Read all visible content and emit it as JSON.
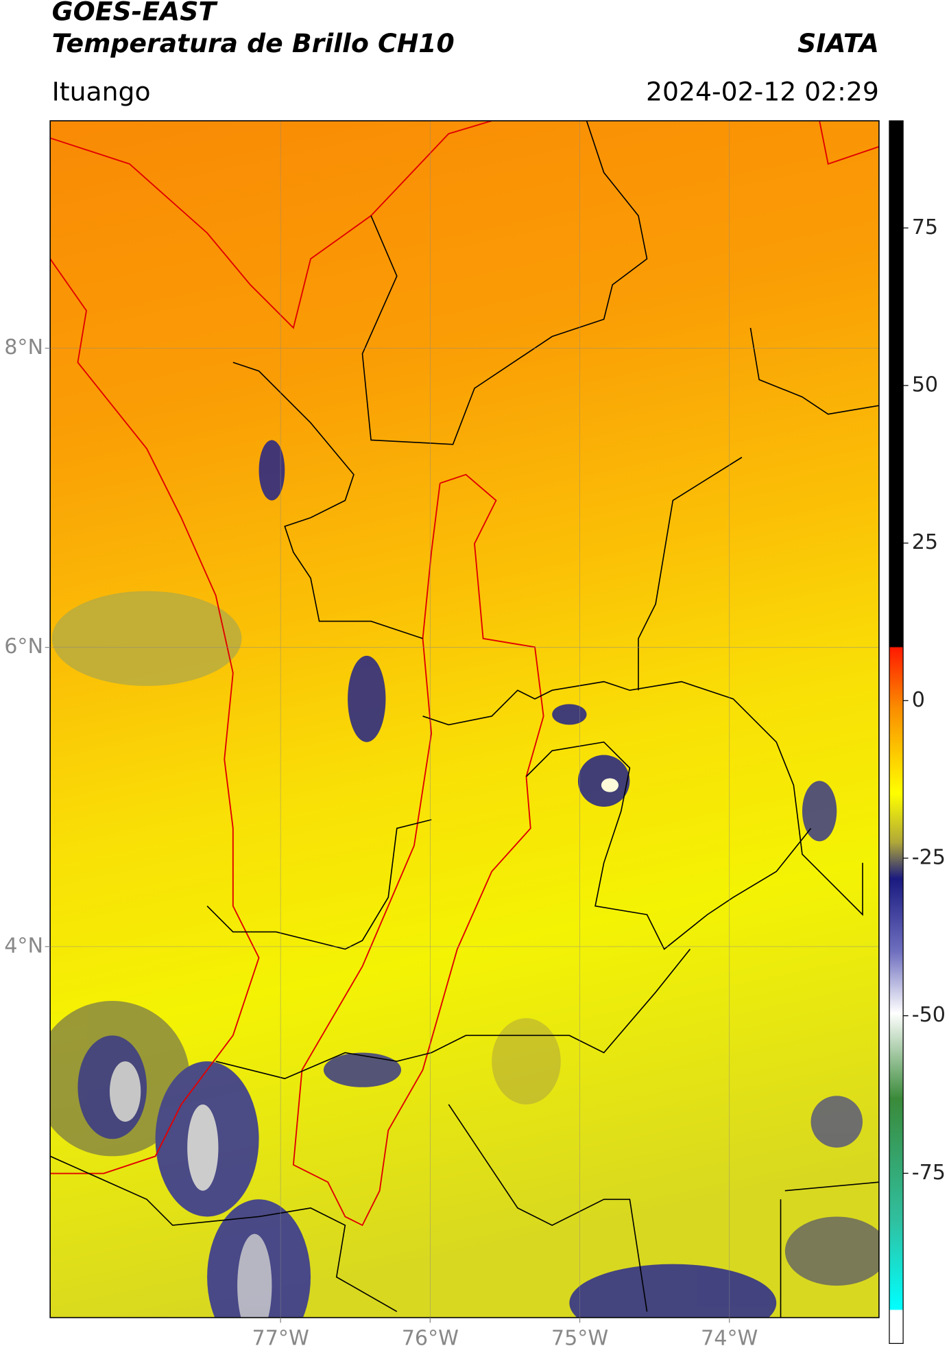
{
  "chart_data": {
    "type": "map",
    "title": "GOES-EAST",
    "subtitle": "Temperatura de Brillo CH10",
    "source": "SIATA",
    "location": "Ituango",
    "datetime": "2024-02-12 02:29",
    "xlim": [
      -78.54,
      -73.0
    ],
    "ylim": [
      1.52,
      9.52
    ],
    "xticks": [
      {
        "value": -77,
        "label": "77°W"
      },
      {
        "value": -76,
        "label": "76°W"
      },
      {
        "value": -75,
        "label": "75°W"
      },
      {
        "value": -74,
        "label": "74°W"
      }
    ],
    "yticks": [
      {
        "value": 8,
        "label": "8°N"
      },
      {
        "value": 6,
        "label": "6°N"
      },
      {
        "value": 4,
        "label": "4°N"
      }
    ],
    "grid": true,
    "colorbar": {
      "lim": [
        -102,
        92
      ],
      "ticks": [
        75,
        50,
        25,
        0,
        -25,
        -50,
        -75
      ]
    }
  }
}
